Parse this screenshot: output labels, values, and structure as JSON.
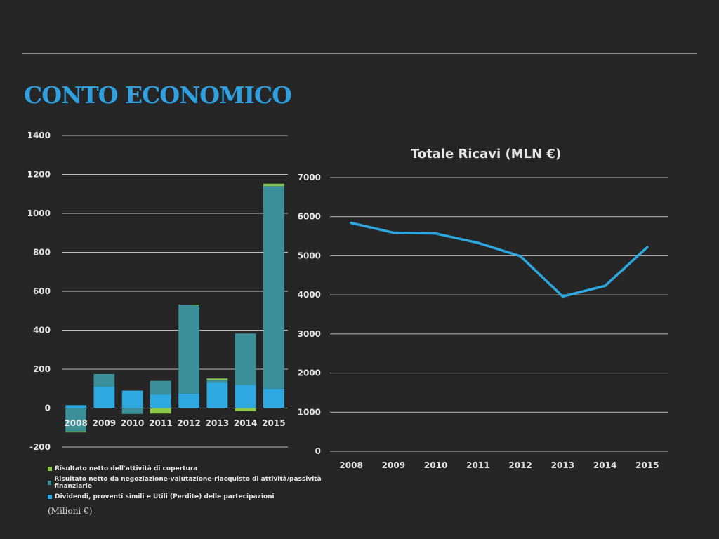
{
  "page": {
    "title": "CONTO ECONOMICO",
    "units_note": "(Milioni €)"
  },
  "chart_data": [
    {
      "type": "bar",
      "stacked": true,
      "categories": [
        "2008",
        "2009",
        "2010",
        "2011",
        "2012",
        "2013",
        "2014",
        "2015"
      ],
      "yticks": [
        -200,
        0,
        200,
        400,
        600,
        800,
        1000,
        1200,
        1400
      ],
      "ylim": [
        -200,
        1400
      ],
      "grid": true,
      "legend_position": "bottom",
      "series": [
        {
          "name": "Dividendi, proventi simili e Utili (Perdite) delle partecipazioni",
          "color": "#2ea8e0",
          "values": [
            15,
            110,
            90,
            70,
            75,
            130,
            120,
            100
          ]
        },
        {
          "name": "Risultato netto da negoziazione-valutazione-riacquisto di attività/passività finanziarie",
          "color": "#3a8f98",
          "values": [
            -120,
            65,
            -30,
            70,
            453,
            15,
            263,
            1040
          ]
        },
        {
          "name": "Risultato netto dell'attività di copertura",
          "color": "#8cc84b",
          "values": [
            -5,
            0,
            0,
            -28,
            3,
            7,
            -15,
            12
          ]
        }
      ]
    },
    {
      "type": "line",
      "title": "Totale Ricavi (MLN €)",
      "categories": [
        "2008",
        "2009",
        "2010",
        "2011",
        "2012",
        "2013",
        "2014",
        "2015"
      ],
      "yticks": [
        0,
        1000,
        2000,
        3000,
        4000,
        5000,
        6000,
        7000
      ],
      "ylim": [
        0,
        7000
      ],
      "grid": true,
      "series": [
        {
          "color": "#2ea8e0",
          "values": [
            5840,
            5590,
            5570,
            5330,
            4990,
            3960,
            4230,
            5220
          ]
        }
      ]
    }
  ]
}
